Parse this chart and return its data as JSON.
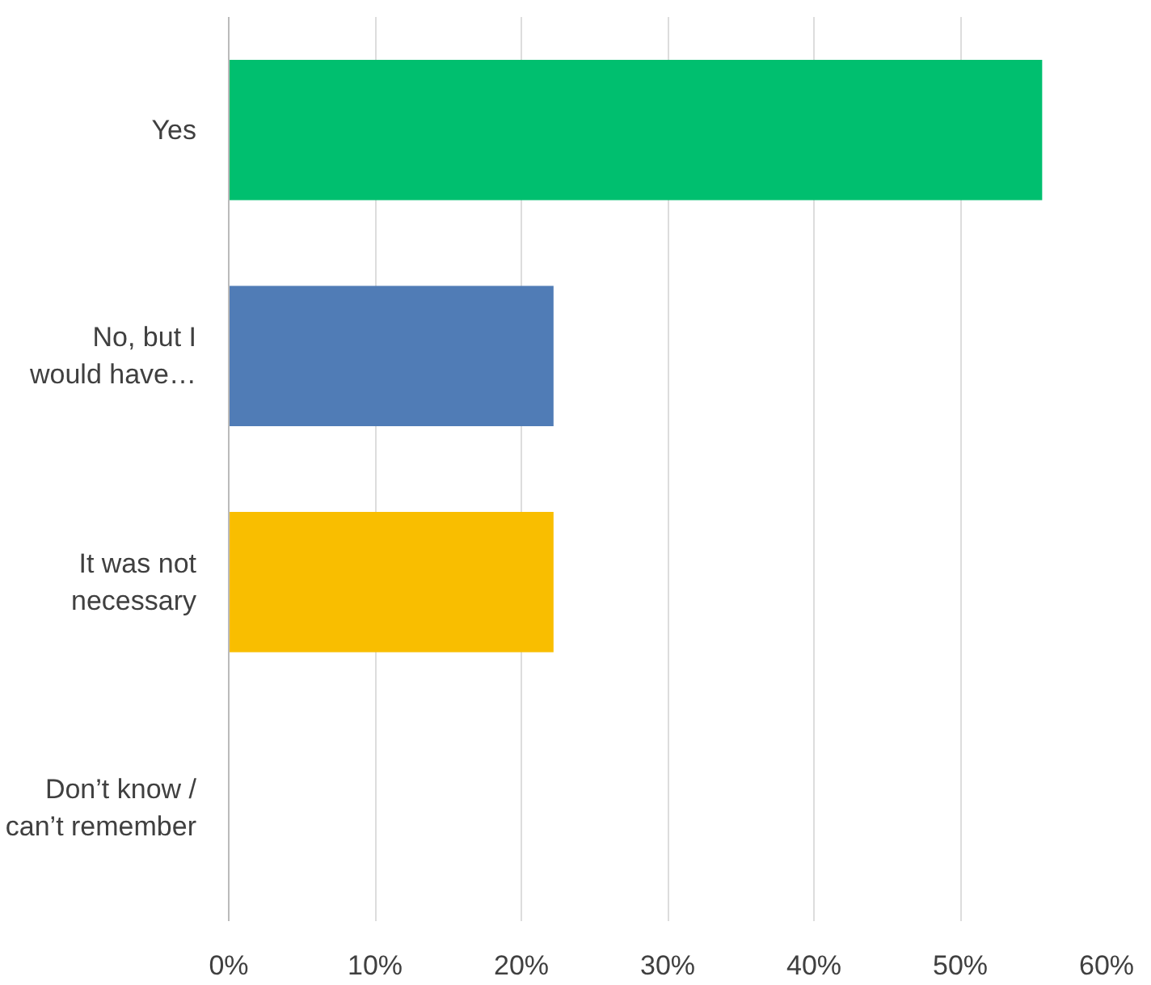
{
  "chart_data": {
    "type": "bar",
    "orientation": "horizontal",
    "categories": [
      "Yes",
      "No, but I\nwould have…",
      "It was not\nnecessary",
      "Don’t know /\ncan’t remember"
    ],
    "values": [
      55.6,
      22.2,
      22.2,
      0
    ],
    "colors": [
      "#00bf6f",
      "#507cb6",
      "#f9be00",
      "#6bc8cd"
    ],
    "xlim": [
      0,
      60
    ],
    "xticks": [
      {
        "value": 0,
        "label": "0%"
      },
      {
        "value": 10,
        "label": "10%"
      },
      {
        "value": 20,
        "label": "20%"
      },
      {
        "value": 30,
        "label": "30%"
      },
      {
        "value": 40,
        "label": "40%"
      },
      {
        "value": 50,
        "label": "50%"
      },
      {
        "value": 60,
        "label": "60%"
      }
    ],
    "grid": "x"
  }
}
